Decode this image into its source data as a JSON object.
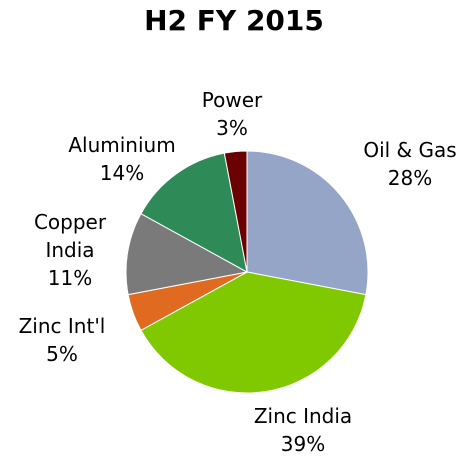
{
  "chart_data": {
    "type": "pie",
    "title": "H2 FY 2015",
    "categories": [
      "Oil & Gas",
      "Zinc India",
      "Zinc Int'l",
      "Copper India",
      "Aluminium",
      "Power"
    ],
    "values": [
      28,
      39,
      5,
      11,
      14,
      3
    ],
    "value_labels": [
      "28%",
      "39%",
      "5%",
      "11%",
      "14%",
      "3%"
    ],
    "colors": [
      "#95a5c8",
      "#80c800",
      "#e06a20",
      "#7a7a7a",
      "#2e8b57",
      "#6b0000"
    ]
  }
}
